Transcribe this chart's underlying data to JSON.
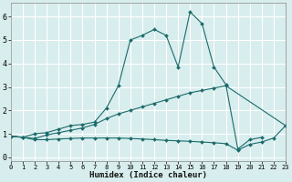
{
  "xlabel": "Humidex (Indice chaleur)",
  "bg_color": "#d8eded",
  "grid_color": "#ffffff",
  "line_color": "#1a6b6b",
  "series": [
    {
      "x": [
        0,
        1,
        2,
        3,
        4,
        5,
        6,
        7,
        8,
        9,
        10,
        11,
        12,
        13,
        14,
        15,
        16,
        17,
        18,
        19,
        20,
        21,
        22
      ],
      "y": [
        0.9,
        0.85,
        1.0,
        1.05,
        1.2,
        1.35,
        1.4,
        1.5,
        2.1,
        3.05,
        5.0,
        5.2,
        5.45,
        5.2,
        3.85,
        6.2,
        5.7,
        3.85,
        3.1,
        0.35,
        0.75,
        0.85,
        null
      ]
    },
    {
      "x": [
        0,
        1,
        2,
        3,
        4,
        5,
        6,
        7,
        8,
        9,
        10,
        11,
        12,
        13,
        14,
        15,
        16,
        17,
        18,
        21,
        22,
        23
      ],
      "y": [
        0.9,
        0.85,
        0.8,
        0.95,
        1.05,
        1.15,
        1.25,
        1.4,
        1.65,
        1.85,
        2.0,
        2.15,
        2.3,
        2.45,
        2.6,
        2.75,
        2.85,
        2.95,
        3.05,
        null,
        null,
        1.35
      ]
    },
    {
      "x": [
        0,
        1,
        2,
        3,
        4,
        5,
        6,
        7,
        8,
        9,
        10,
        11,
        12,
        13,
        14,
        15,
        16,
        17,
        18,
        19,
        20,
        21,
        22,
        23
      ],
      "y": [
        0.9,
        0.85,
        0.75,
        0.75,
        0.78,
        0.8,
        0.82,
        0.82,
        0.82,
        0.82,
        0.8,
        0.78,
        0.75,
        0.72,
        0.7,
        0.68,
        0.65,
        0.62,
        0.58,
        0.3,
        0.55,
        0.65,
        0.82,
        1.35
      ]
    }
  ],
  "xlim": [
    0,
    23
  ],
  "ylim": [
    -0.15,
    6.6
  ],
  "yticks": [
    0,
    1,
    2,
    3,
    4,
    5,
    6
  ],
  "xticks": [
    0,
    1,
    2,
    3,
    4,
    5,
    6,
    7,
    8,
    9,
    10,
    11,
    12,
    13,
    14,
    15,
    16,
    17,
    18,
    19,
    20,
    21,
    22,
    23
  ]
}
